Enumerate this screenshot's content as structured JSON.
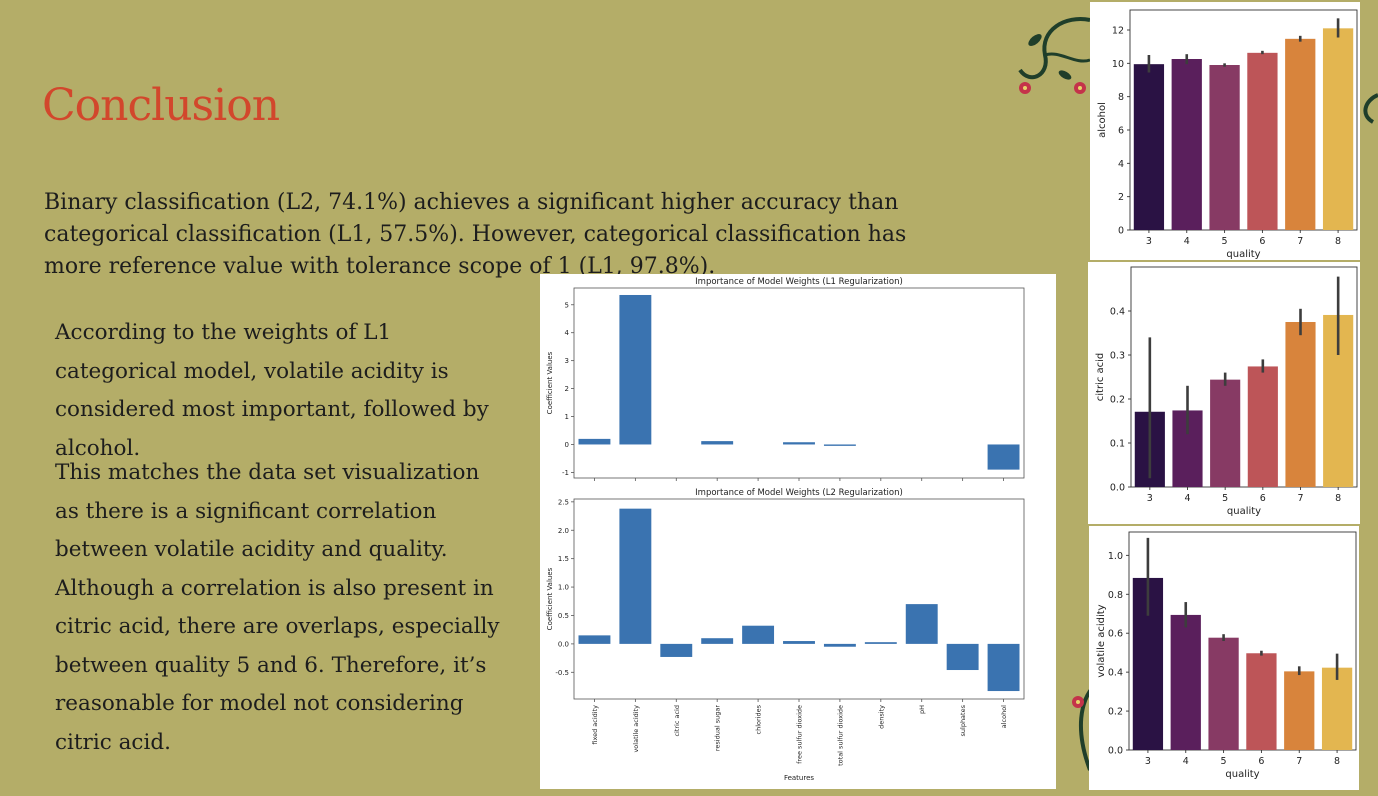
{
  "slide": {
    "title": "Conclusion",
    "intro": "Binary classification (L2, 74.1%) achieves a significant higher accuracy than categorical classification (L1, 57.5%). However, categorical classification has more reference value with tolerance scope of 1 (L1, 97.8%).",
    "para1": "According to the weights of L1 categorical model, volatile acidity is considered most important, followed by alcohol.",
    "para2": "This matches the data set visualization as there is a significant correlation between volatile acidity and quality. Although a correlation is also present in citric acid, there are overlaps, especially between quality 5 and 6. Therefore, it’s reasonable for model not considering citric acid."
  },
  "colors": {
    "background": "#b4ad68",
    "title": "#d2472c",
    "coef_bar": "#3a73b0",
    "quality_palette": [
      "#2a1244",
      "#5a1f5c",
      "#873a64",
      "#bd5558",
      "#d8843c",
      "#e3b650"
    ]
  },
  "chart_data": [
    {
      "id": "l1",
      "type": "bar",
      "title": "Importance of Model Weights (L1 Regularization)",
      "xlabel": "",
      "ylabel": "Coefficient Values",
      "categories": [
        "fixed acidity",
        "volatile acidity",
        "citric acid",
        "residual sugar",
        "chlorides",
        "free sulfur dioxide",
        "total sulfur dioxide",
        "density",
        "pH",
        "sulphates",
        "alcohol"
      ],
      "values": [
        0.2,
        5.35,
        0.0,
        0.12,
        0.0,
        0.08,
        -0.05,
        0.0,
        0.0,
        0.0,
        -0.9
      ],
      "ylim": [
        -1.2,
        5.6
      ],
      "yticks": [
        -1,
        0,
        1,
        2,
        3,
        4,
        5
      ]
    },
    {
      "id": "l2",
      "type": "bar",
      "title": "Importance of Model Weights (L2 Regularization)",
      "xlabel": "Features",
      "ylabel": "Coefficient Values",
      "categories": [
        "fixed acidity",
        "volatile acidity",
        "citric acid",
        "residual sugar",
        "chlorides",
        "free sulfur dioxide",
        "total sulfur dioxide",
        "density",
        "pH",
        "sulphates",
        "alcohol"
      ],
      "values": [
        0.15,
        2.38,
        -0.23,
        0.1,
        0.32,
        0.05,
        -0.05,
        0.03,
        0.7,
        -0.46,
        -0.83
      ],
      "ylim": [
        -0.97,
        2.55
      ],
      "yticks": [
        "-0.5",
        "0.0",
        "0.5",
        "1.0",
        "1.5",
        "2.0",
        "2.5"
      ],
      "ytick_values": [
        -0.5,
        0.0,
        0.5,
        1.0,
        1.5,
        2.0,
        2.5
      ]
    },
    {
      "id": "alcohol",
      "type": "bar",
      "xlabel": "quality",
      "ylabel": "alcohol",
      "categories": [
        "3",
        "4",
        "5",
        "6",
        "7",
        "8"
      ],
      "values": [
        9.95,
        10.26,
        9.9,
        10.63,
        11.47,
        12.1
      ],
      "error": [
        [
          9.45,
          10.5
        ],
        [
          9.95,
          10.55
        ],
        [
          9.8,
          10.0
        ],
        [
          10.55,
          10.75
        ],
        [
          11.3,
          11.65
        ],
        [
          11.55,
          12.7
        ]
      ],
      "ylim": [
        0,
        13.2
      ],
      "yticks": [
        "0",
        "2",
        "4",
        "6",
        "8",
        "10",
        "12"
      ],
      "ytick_values": [
        0,
        2,
        4,
        6,
        8,
        10,
        12
      ]
    },
    {
      "id": "citric",
      "type": "bar",
      "xlabel": "quality",
      "ylabel": "citric acid",
      "categories": [
        "3",
        "4",
        "5",
        "6",
        "7",
        "8"
      ],
      "values": [
        0.171,
        0.174,
        0.244,
        0.274,
        0.375,
        0.391
      ],
      "error": [
        [
          0.02,
          0.34
        ],
        [
          0.12,
          0.23
        ],
        [
          0.23,
          0.26
        ],
        [
          0.26,
          0.29
        ],
        [
          0.345,
          0.405
        ],
        [
          0.3,
          0.478
        ]
      ],
      "ylim": [
        0,
        0.5
      ],
      "yticks": [
        "0.0",
        "0.1",
        "0.2",
        "0.3",
        "0.4"
      ],
      "ytick_values": [
        0,
        0.1,
        0.2,
        0.3,
        0.4
      ]
    },
    {
      "id": "volatile",
      "type": "bar",
      "xlabel": "quality",
      "ylabel": "volatile acidity",
      "categories": [
        "3",
        "4",
        "5",
        "6",
        "7",
        "8"
      ],
      "values": [
        0.884,
        0.694,
        0.577,
        0.497,
        0.404,
        0.423
      ],
      "error": [
        [
          0.69,
          1.09
        ],
        [
          0.63,
          0.76
        ],
        [
          0.56,
          0.595
        ],
        [
          0.485,
          0.51
        ],
        [
          0.385,
          0.43
        ],
        [
          0.36,
          0.495
        ]
      ],
      "ylim": [
        0,
        1.12
      ],
      "yticks": [
        "0.0",
        "0.2",
        "0.4",
        "0.6",
        "0.8",
        "1.0"
      ],
      "ytick_values": [
        0,
        0.2,
        0.4,
        0.6,
        0.8,
        1.0
      ]
    }
  ]
}
